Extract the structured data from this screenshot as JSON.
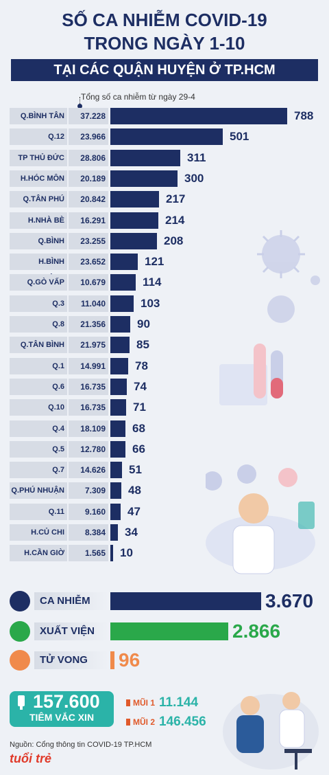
{
  "title_line1": "SỐ CA NHIỄM COVID-19",
  "title_line2": "TRONG NGÀY 1-10",
  "subtitle": "TẠI CÁC QUẬN HUYỆN Ở TP.HCM",
  "note": "Tổng số ca nhiễm từ ngày 29-4",
  "chart_data": {
    "type": "bar",
    "categories": [
      "Q.BÌNH TÂN",
      "Q.12",
      "TP THỦ ĐỨC",
      "H.HÓC MÔN",
      "Q.TÂN PHÚ",
      "H.NHÀ BÈ",
      "Q.BÌNH THẠNH",
      "H.BÌNH CHÁNH",
      "Q.GÒ VẤP",
      "Q.3",
      "Q.8",
      "Q.TÂN BÌNH",
      "Q.1",
      "Q.6",
      "Q.10",
      "Q.4",
      "Q.5",
      "Q.7",
      "Q.PHÚ NHUẬN",
      "Q.11",
      "H.CỦ CHI",
      "H.CẦN GIỜ"
    ],
    "totals": [
      "37.228",
      "23.966",
      "28.806",
      "20.189",
      "20.842",
      "16.291",
      "23.255",
      "23.652",
      "10.679",
      "11.040",
      "21.356",
      "21.975",
      "14.991",
      "16.735",
      "16.735",
      "18.109",
      "12.780",
      "14.626",
      "7.309",
      "9.160",
      "8.384",
      "1.565"
    ],
    "values": [
      788,
      501,
      311,
      300,
      217,
      214,
      208,
      121,
      114,
      103,
      90,
      85,
      78,
      74,
      71,
      68,
      66,
      51,
      48,
      47,
      34,
      10
    ]
  },
  "summary": [
    {
      "label": "CA NHIỄM",
      "value": "3.670",
      "color": "#1d2e63",
      "icon": "head-icon"
    },
    {
      "label": "XUẤT VIỆN",
      "value": "2.866",
      "color": "#2aa84a",
      "icon": "heart-icon"
    },
    {
      "label": "TỬ VONG",
      "value": "96",
      "color": "#f08a4b",
      "icon": "bed-icon"
    }
  ],
  "vaccine": {
    "total": "157.600",
    "label": "TIÊM VẮC XIN",
    "dose1_label": "MŨI 1",
    "dose1_value": "11.144",
    "dose2_label": "MŨI 2",
    "dose2_value": "146.456"
  },
  "source": "Nguồn: Cổng thông tin COVID-19 TP.HCM",
  "logo": "tuổi trẻ"
}
